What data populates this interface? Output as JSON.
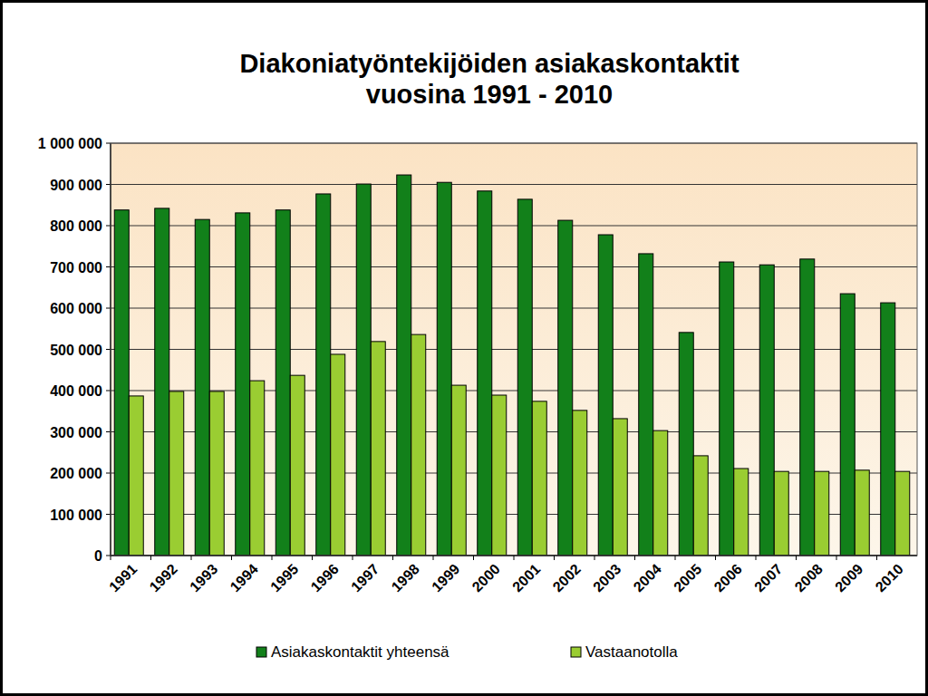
{
  "chart_data": {
    "type": "bar",
    "title": "Diakoniatyöntekijöiden asiakaskontaktit\nvuosina 1991 - 2010",
    "categories": [
      "1991",
      "1992",
      "1993",
      "1994",
      "1995",
      "1996",
      "1997",
      "1998",
      "1999",
      "2000",
      "2001",
      "2002",
      "2003",
      "2004",
      "2005",
      "2006",
      "2007",
      "2008",
      "2009",
      "2010"
    ],
    "series": [
      {
        "name": "Asiakaskontaktit yhteensä",
        "color": "#12801a",
        "values": [
          838000,
          842000,
          815000,
          831000,
          838000,
          877000,
          901000,
          923000,
          905000,
          884000,
          864000,
          813000,
          778000,
          732000,
          541000,
          712000,
          705000,
          719000,
          635000,
          613000
        ]
      },
      {
        "name": "Vastaanotolla",
        "color": "#9acd32",
        "values": [
          387000,
          398000,
          398000,
          424000,
          437000,
          488000,
          519000,
          536000,
          413000,
          389000,
          374000,
          352000,
          332000,
          303000,
          242000,
          211000,
          204000,
          204000,
          207000,
          204000
        ]
      }
    ],
    "ylim": [
      0,
      1000000
    ],
    "yticks": [
      0,
      {
        "value": 100000,
        "label": "100 000"
      },
      {
        "value": 200000,
        "label": "200 000"
      },
      {
        "value": 300000,
        "label": "300 000"
      },
      {
        "value": 400000,
        "label": "400 000"
      },
      {
        "value": 500000,
        "label": "500 000"
      },
      {
        "value": 600000,
        "label": "600 000"
      },
      {
        "value": 700000,
        "label": "700 000"
      },
      {
        "value": 800000,
        "label": "800 000"
      },
      {
        "value": 900000,
        "label": "900 000"
      },
      {
        "value": 1000000,
        "label": "1 000 000"
      }
    ],
    "grid": true,
    "legend": "bottom"
  }
}
